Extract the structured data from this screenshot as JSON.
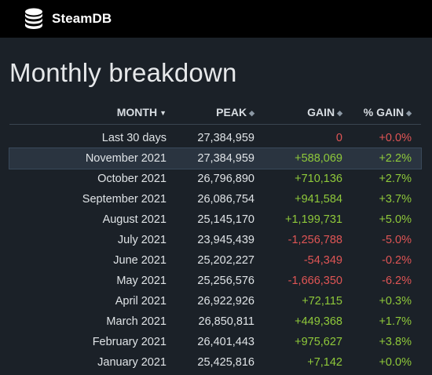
{
  "site": {
    "name": "SteamDB",
    "logo_icon": "database-stack-icon"
  },
  "page": {
    "title": "Monthly breakdown"
  },
  "colors": {
    "background": "#1b2128",
    "header_bar": "#000000",
    "positive": "#8fc93a",
    "negative": "#e05555",
    "row_highlight": "#2a3440"
  },
  "table": {
    "headers": {
      "month": "MONTH",
      "peak": "PEAK",
      "gain": "GAIN",
      "pct_gain": "% GAIN"
    },
    "sort_column": "month",
    "sort_direction": "descending",
    "rows": [
      {
        "month": "Last 30 days",
        "peak": "27,384,959",
        "gain": "0",
        "pct": "+0.0%",
        "gain_sign": "neg",
        "pct_sign": "neg"
      },
      {
        "month": "November 2021",
        "peak": "27,384,959",
        "gain": "+588,069",
        "pct": "+2.2%",
        "gain_sign": "pos",
        "pct_sign": "pos"
      },
      {
        "month": "October 2021",
        "peak": "26,796,890",
        "gain": "+710,136",
        "pct": "+2.7%",
        "gain_sign": "pos",
        "pct_sign": "pos"
      },
      {
        "month": "September 2021",
        "peak": "26,086,754",
        "gain": "+941,584",
        "pct": "+3.7%",
        "gain_sign": "pos",
        "pct_sign": "pos"
      },
      {
        "month": "August 2021",
        "peak": "25,145,170",
        "gain": "+1,199,731",
        "pct": "+5.0%",
        "gain_sign": "pos",
        "pct_sign": "pos"
      },
      {
        "month": "July 2021",
        "peak": "23,945,439",
        "gain": "-1,256,788",
        "pct": "-5.0%",
        "gain_sign": "neg",
        "pct_sign": "neg"
      },
      {
        "month": "June 2021",
        "peak": "25,202,227",
        "gain": "-54,349",
        "pct": "-0.2%",
        "gain_sign": "neg",
        "pct_sign": "neg"
      },
      {
        "month": "May 2021",
        "peak": "25,256,576",
        "gain": "-1,666,350",
        "pct": "-6.2%",
        "gain_sign": "neg",
        "pct_sign": "neg"
      },
      {
        "month": "April 2021",
        "peak": "26,922,926",
        "gain": "+72,115",
        "pct": "+0.3%",
        "gain_sign": "pos",
        "pct_sign": "pos"
      },
      {
        "month": "March 2021",
        "peak": "26,850,811",
        "gain": "+449,368",
        "pct": "+1.7%",
        "gain_sign": "pos",
        "pct_sign": "pos"
      },
      {
        "month": "February 2021",
        "peak": "26,401,443",
        "gain": "+975,627",
        "pct": "+3.8%",
        "gain_sign": "pos",
        "pct_sign": "pos"
      },
      {
        "month": "January 2021",
        "peak": "25,425,816",
        "gain": "+7,142",
        "pct": "+0.0%",
        "gain_sign": "pos",
        "pct_sign": "pos"
      }
    ]
  }
}
